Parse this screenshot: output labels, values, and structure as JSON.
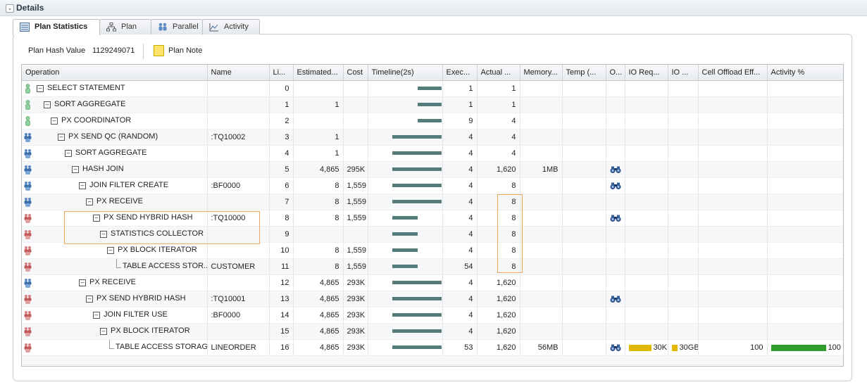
{
  "section": {
    "title": "Details"
  },
  "tabs": [
    {
      "label": "Plan Statistics",
      "icon": "plan-statistics-icon"
    },
    {
      "label": "Plan",
      "icon": "plan-tree-icon"
    },
    {
      "label": "Parallel",
      "icon": "parallel-icon"
    },
    {
      "label": "Activity",
      "icon": "activity-chart-icon"
    }
  ],
  "plan_hash": {
    "label": "Plan Hash Value",
    "value": "1129249071"
  },
  "plan_note": {
    "label": "Plan Note"
  },
  "columns": [
    "Operation",
    "Name",
    "Li...",
    "Estimated...",
    "Cost",
    "Timeline(2s)",
    "Exec...",
    "Actual ...",
    "Memory...",
    "Temp (...",
    "O...",
    "IO Req...",
    "IO ...",
    "Cell Offload Eff...",
    "Activity %"
  ],
  "rows": [
    {
      "op": "SELECT STATEMENT",
      "name": "",
      "line": "0",
      "est": "",
      "cost": "",
      "exec": "1",
      "actual": "1",
      "memory": "",
      "temp": "",
      "binoc": false,
      "io_req": "",
      "io_bytes": "",
      "offload": "",
      "activity": "",
      "icon": "single-process-icon"
    },
    {
      "op": "SORT AGGREGATE",
      "name": "",
      "line": "1",
      "est": "1",
      "cost": "",
      "exec": "1",
      "actual": "1",
      "memory": "",
      "temp": "",
      "binoc": false,
      "io_req": "",
      "io_bytes": "",
      "offload": "",
      "activity": "",
      "icon": "single-process-icon"
    },
    {
      "op": "PX COORDINATOR",
      "name": "",
      "line": "2",
      "est": "",
      "cost": "",
      "exec": "9",
      "actual": "4",
      "memory": "",
      "temp": "",
      "binoc": false,
      "io_req": "",
      "io_bytes": "",
      "offload": "",
      "activity": "",
      "icon": "single-process-icon"
    },
    {
      "op": "PX SEND QC (RANDOM)",
      "name": ":TQ10002",
      "line": "3",
      "est": "1",
      "cost": "",
      "exec": "4",
      "actual": "4",
      "memory": "",
      "temp": "",
      "binoc": false,
      "io_req": "",
      "io_bytes": "",
      "offload": "",
      "activity": "",
      "icon": "parallel-blue-icon"
    },
    {
      "op": "SORT AGGREGATE",
      "name": "",
      "line": "4",
      "est": "1",
      "cost": "",
      "exec": "4",
      "actual": "4",
      "memory": "",
      "temp": "",
      "binoc": false,
      "io_req": "",
      "io_bytes": "",
      "offload": "",
      "activity": "",
      "icon": "parallel-blue-icon"
    },
    {
      "op": "HASH JOIN",
      "name": "",
      "line": "5",
      "est": "4,865",
      "cost": "295K",
      "exec": "4",
      "actual": "1,620",
      "memory": "1MB",
      "temp": "",
      "binoc": true,
      "io_req": "",
      "io_bytes": "",
      "offload": "",
      "activity": "",
      "icon": "parallel-blue-icon"
    },
    {
      "op": "JOIN FILTER CREATE",
      "name": ":BF0000",
      "line": "6",
      "est": "8",
      "cost": "1,559",
      "exec": "4",
      "actual": "8",
      "memory": "",
      "temp": "",
      "binoc": true,
      "io_req": "",
      "io_bytes": "",
      "offload": "",
      "activity": "",
      "icon": "parallel-blue-icon"
    },
    {
      "op": "PX RECEIVE",
      "name": "",
      "line": "7",
      "est": "8",
      "cost": "1,559",
      "exec": "4",
      "actual": "8",
      "memory": "",
      "temp": "",
      "binoc": false,
      "io_req": "",
      "io_bytes": "",
      "offload": "",
      "activity": "",
      "icon": "parallel-blue-icon"
    },
    {
      "op": "PX SEND HYBRID HASH",
      "name": ":TQ10000",
      "line": "8",
      "est": "8",
      "cost": "1,559",
      "exec": "4",
      "actual": "8",
      "memory": "",
      "temp": "",
      "binoc": true,
      "io_req": "",
      "io_bytes": "",
      "offload": "",
      "activity": "",
      "icon": "parallel-red-icon"
    },
    {
      "op": "STATISTICS COLLECTOR",
      "name": "",
      "line": "9",
      "est": "",
      "cost": "",
      "exec": "4",
      "actual": "8",
      "memory": "",
      "temp": "",
      "binoc": false,
      "io_req": "",
      "io_bytes": "",
      "offload": "",
      "activity": "",
      "icon": "parallel-red-icon"
    },
    {
      "op": "PX BLOCK ITERATOR",
      "name": "",
      "line": "10",
      "est": "8",
      "cost": "1,559",
      "exec": "4",
      "actual": "8",
      "memory": "",
      "temp": "",
      "binoc": false,
      "io_req": "",
      "io_bytes": "",
      "offload": "",
      "activity": "",
      "icon": "parallel-red-icon"
    },
    {
      "op": "TABLE ACCESS STOR...",
      "name": "CUSTOMER",
      "line": "11",
      "est": "8",
      "cost": "1,559",
      "exec": "54",
      "actual": "8",
      "memory": "",
      "temp": "",
      "binoc": false,
      "io_req": "",
      "io_bytes": "",
      "offload": "",
      "activity": "",
      "icon": "parallel-red-icon"
    },
    {
      "op": "PX RECEIVE",
      "name": "",
      "line": "12",
      "est": "4,865",
      "cost": "293K",
      "exec": "4",
      "actual": "1,620",
      "memory": "",
      "temp": "",
      "binoc": false,
      "io_req": "",
      "io_bytes": "",
      "offload": "",
      "activity": "",
      "icon": "parallel-blue-icon"
    },
    {
      "op": "PX SEND HYBRID HASH",
      "name": ":TQ10001",
      "line": "13",
      "est": "4,865",
      "cost": "293K",
      "exec": "4",
      "actual": "1,620",
      "memory": "",
      "temp": "",
      "binoc": true,
      "io_req": "",
      "io_bytes": "",
      "offload": "",
      "activity": "",
      "icon": "parallel-red-icon"
    },
    {
      "op": "JOIN FILTER USE",
      "name": ":BF0000",
      "line": "14",
      "est": "4,865",
      "cost": "293K",
      "exec": "4",
      "actual": "1,620",
      "memory": "",
      "temp": "",
      "binoc": false,
      "io_req": "",
      "io_bytes": "",
      "offload": "",
      "activity": "",
      "icon": "parallel-red-icon"
    },
    {
      "op": "PX BLOCK ITERATOR",
      "name": "",
      "line": "15",
      "est": "4,865",
      "cost": "293K",
      "exec": "4",
      "actual": "1,620",
      "memory": "",
      "temp": "",
      "binoc": false,
      "io_req": "",
      "io_bytes": "",
      "offload": "",
      "activity": "",
      "icon": "parallel-red-icon"
    },
    {
      "op": "TABLE ACCESS STORAG...",
      "name": "LINEORDER",
      "line": "16",
      "est": "4,865",
      "cost": "293K",
      "exec": "53",
      "actual": "1,620",
      "memory": "56MB",
      "temp": "",
      "binoc": true,
      "io_req": "30K",
      "io_bytes": "30GB",
      "offload": "100",
      "activity": "100",
      "icon": "parallel-red-icon"
    }
  ],
  "colors": {
    "timeline_bar": "#567b7b",
    "io_gauge": "#e0b800",
    "activity_bar": "#2e9e2e",
    "highlight": "#f0a85a"
  }
}
